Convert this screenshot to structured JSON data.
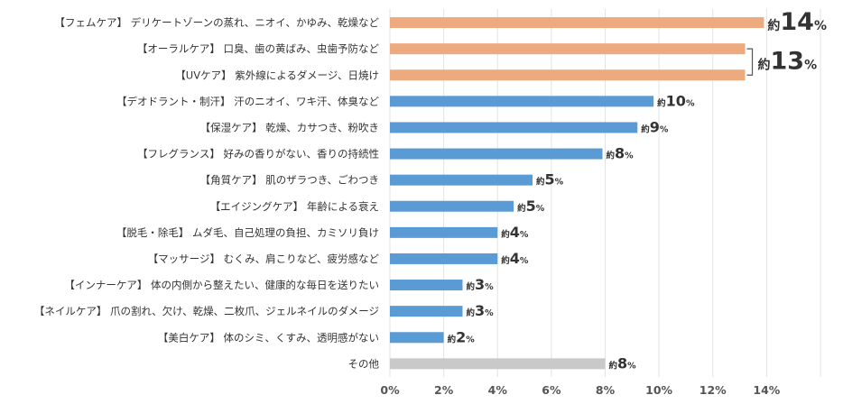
{
  "chart_data": {
    "type": "bar",
    "orientation": "horizontal",
    "categories": [
      "【フェムケア】 デリケートゾーンの蒸れ、ニオイ、かゆみ、乾燥など",
      "【オーラルケア】 口臭、歯の黄ばみ、虫歯予防など",
      "【UVケア】 紫外線によるダメージ、日焼け",
      "【デオドラント・制汗】 汗のニオイ、ワキ汗、体臭など",
      "【保湿ケア】 乾燥、カサつき、粉吹き",
      "【フレグランス】 好みの香りがない、香りの持続性",
      "【角質ケア】 肌のザラつき、ごわつき",
      "【エイジングケア】 年齢による衰え",
      "【脱毛・除毛】 ムダ毛、自己処理の負担、カミソリ負け",
      "【マッサージ】 むくみ、肩こりなど、疲労感など",
      "【インナーケア】 体の内側から整えたい、健康的な毎日を送りたい",
      "【ネイルケア】 爪の割れ、欠け、乾燥、二枚爪、ジェルネイルのダメージ",
      "【美白ケア】 体のシミ、くすみ、透明感がない",
      "その他"
    ],
    "values": [
      13.9,
      13.2,
      13.2,
      9.8,
      9.2,
      7.9,
      5.3,
      4.6,
      4.0,
      4.0,
      2.7,
      2.7,
      2.0,
      8.0
    ],
    "data_labels": [
      {
        "prefix": "約",
        "num": "14",
        "suffix": "%",
        "size": "xl"
      },
      {
        "prefix": "",
        "num": "",
        "suffix": "",
        "size": "none"
      },
      {
        "prefix": "",
        "num": "",
        "suffix": "",
        "size": "none"
      },
      {
        "prefix": "約",
        "num": "10",
        "suffix": "%",
        "size": "m"
      },
      {
        "prefix": "約",
        "num": "9",
        "suffix": "%",
        "size": "m"
      },
      {
        "prefix": "約",
        "num": "8",
        "suffix": "%",
        "size": "m"
      },
      {
        "prefix": "約",
        "num": "5",
        "suffix": "%",
        "size": "m"
      },
      {
        "prefix": "約",
        "num": "5",
        "suffix": "%",
        "size": "m"
      },
      {
        "prefix": "約",
        "num": "4",
        "suffix": "%",
        "size": "m"
      },
      {
        "prefix": "約",
        "num": "4",
        "suffix": "%",
        "size": "m"
      },
      {
        "prefix": "約",
        "num": "3",
        "suffix": "%",
        "size": "m"
      },
      {
        "prefix": "約",
        "num": "3",
        "suffix": "%",
        "size": "m"
      },
      {
        "prefix": "約",
        "num": "2",
        "suffix": "%",
        "size": "m"
      },
      {
        "prefix": "約",
        "num": "8",
        "suffix": "%",
        "size": "m"
      }
    ],
    "group_annotation": {
      "rows": [
        1,
        2
      ],
      "prefix": "約",
      "num": "13",
      "suffix": "%"
    },
    "bar_colors": [
      "#EDAA7F",
      "#EDAA7F",
      "#EDAA7F",
      "#5B9BD5",
      "#5B9BD5",
      "#5B9BD5",
      "#5B9BD5",
      "#5B9BD5",
      "#5B9BD5",
      "#5B9BD5",
      "#5B9BD5",
      "#5B9BD5",
      "#5B9BD5",
      "#C9C9C9"
    ],
    "xlim": [
      0,
      16
    ],
    "x_ticks": [
      "0%",
      "2%",
      "4%",
      "6%",
      "8%",
      "10%",
      "12%",
      "14%"
    ],
    "x_tick_values": [
      0,
      2,
      4,
      6,
      8,
      10,
      12,
      14
    ],
    "grid": true,
    "title": "",
    "xlabel": "",
    "ylabel": ""
  }
}
